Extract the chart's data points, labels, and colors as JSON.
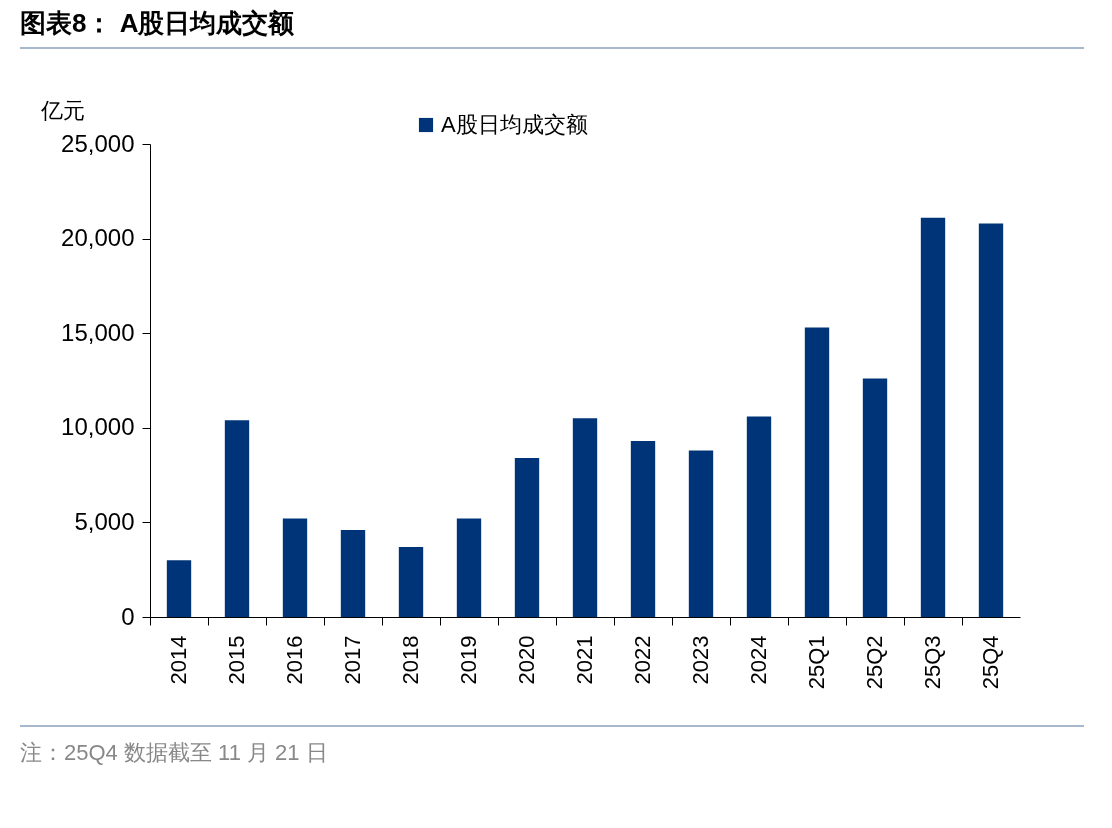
{
  "chart_data": {
    "type": "bar",
    "title": "图表8： A股日均成交额",
    "ylabel": "亿元",
    "categories": [
      "2014",
      "2015",
      "2016",
      "2017",
      "2018",
      "2019",
      "2020",
      "2021",
      "2022",
      "2023",
      "2024",
      "25Q1",
      "25Q2",
      "25Q3",
      "25Q4"
    ],
    "series": [
      {
        "name": "A股日均成交额",
        "color": "#003478",
        "values": [
          3000,
          10400,
          5200,
          4600,
          3700,
          5200,
          8400,
          10500,
          9300,
          8800,
          10600,
          15300,
          12600,
          21100,
          20800
        ]
      }
    ],
    "ylim": [
      0,
      25000
    ],
    "yticks": [
      0,
      {
        "value": 5000,
        "label": "5,000"
      },
      {
        "value": 10000,
        "label": "10,000"
      },
      {
        "value": 15000,
        "label": "15,000"
      },
      {
        "value": 20000,
        "label": "20,000"
      },
      {
        "value": 25000,
        "label": "25,000"
      }
    ],
    "grid": false,
    "legend": "top",
    "annotations": [
      "注：25Q4 数据截至 11 月 21 日"
    ]
  }
}
